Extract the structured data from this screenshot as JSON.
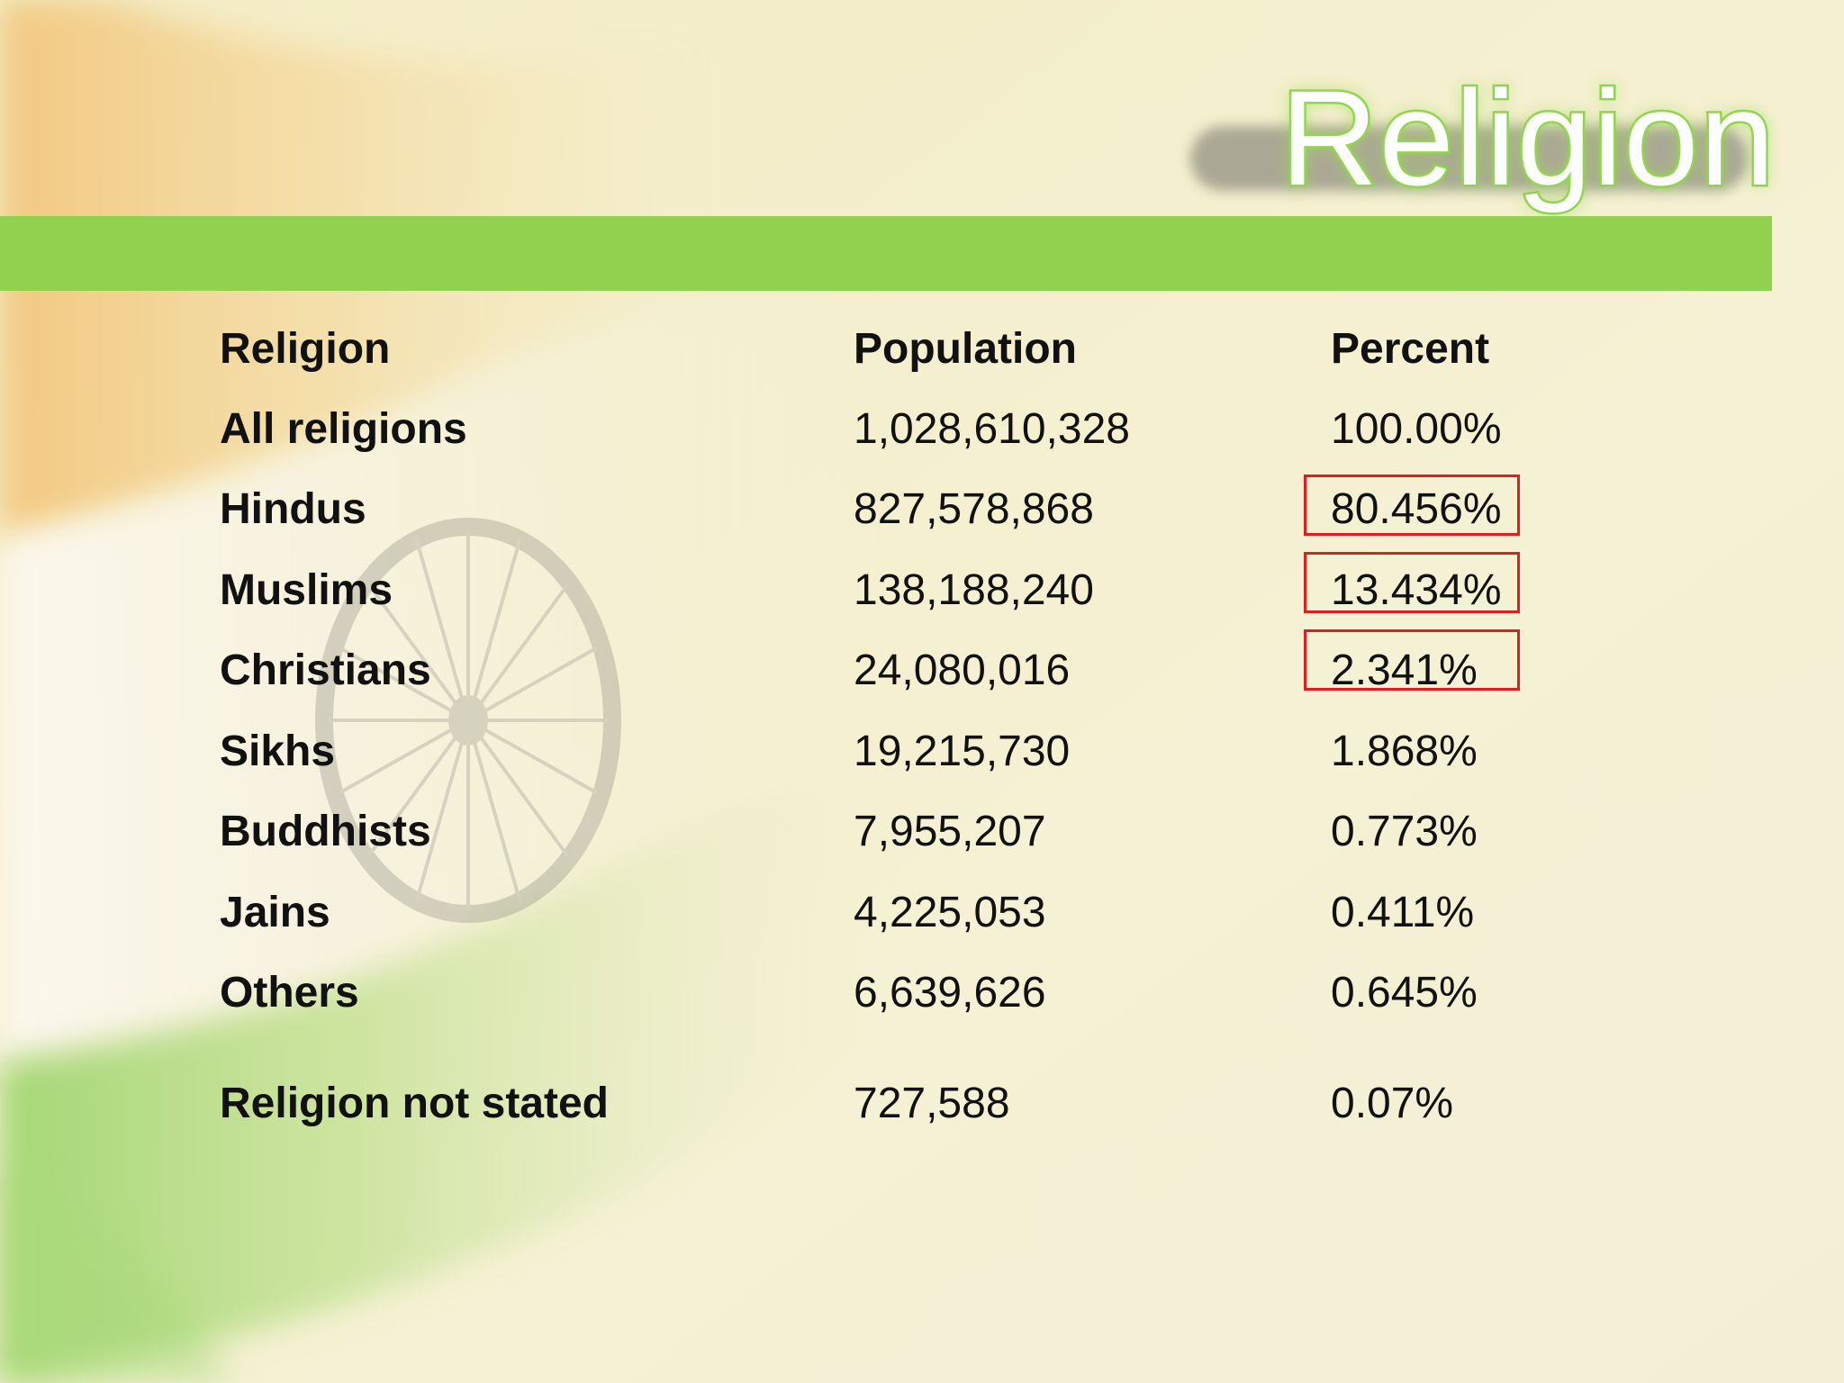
{
  "slide": {
    "title": "Religion"
  },
  "table": {
    "headers": {
      "religion": "Religion",
      "population": "Population",
      "percent": "Percent"
    },
    "rows": [
      {
        "religion": "All religions",
        "population": "1,028,610,328",
        "percent": "100.00%"
      },
      {
        "religion": "Hindus",
        "population": "827,578,868",
        "percent": "80.456%"
      },
      {
        "religion": "Muslims",
        "population": "138,188,240",
        "percent": "13.434%"
      },
      {
        "religion": "Christians",
        "population": "24,080,016",
        "percent": "2.341%"
      },
      {
        "religion": "Sikhs",
        "population": "19,215,730",
        "percent": "1.868%"
      },
      {
        "religion": "Buddhists",
        "population": "7,955,207",
        "percent": "0.773%"
      },
      {
        "religion": "Jains",
        "population": "4,225,053",
        "percent": "0.411%"
      },
      {
        "religion": "Others",
        "population": "6,639,626",
        "percent": "0.645%"
      },
      {
        "religion": "Religion not stated",
        "population": "727,588",
        "percent": "0.07%"
      }
    ]
  },
  "highlighted_percents": [
    "80.456%",
    "13.434%",
    "2.341%"
  ],
  "colors": {
    "accent_bar": "#92d050",
    "highlight_box": "#e01e1e",
    "flag_saffron": "#f4c27a",
    "flag_green": "#8fcf5a",
    "chakra": "#8a8a8a"
  }
}
